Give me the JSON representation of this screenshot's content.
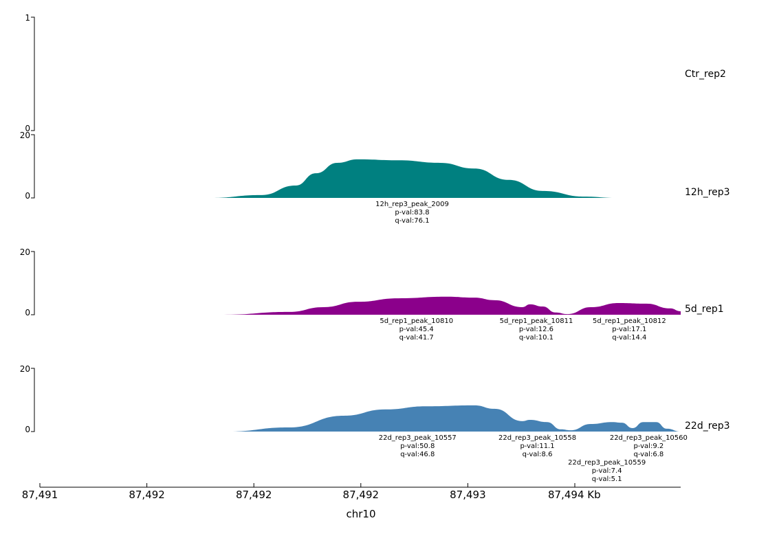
{
  "chart_data": {
    "type": "area",
    "xlabel": "chr10",
    "x_ticks": [
      {
        "value": 0,
        "label": "87,491"
      },
      {
        "value": 1,
        "label": "87,492"
      },
      {
        "value": 2,
        "label": "87,492"
      },
      {
        "value": 3,
        "label": "87,492"
      },
      {
        "value": 4,
        "label": "87,493"
      },
      {
        "value": 5,
        "label": "87,494 Kb"
      }
    ],
    "xlim": [
      -0.05,
      5.99
    ],
    "tracks": [
      {
        "name": "Ctr_rep2",
        "color": "#008080",
        "ylim": [
          0,
          1
        ],
        "ytick_labels": [
          "1",
          "0"
        ],
        "points": [],
        "peaks": []
      },
      {
        "name": "12h_rep3",
        "color": "#008080",
        "ylim": [
          0,
          20
        ],
        "ytick_labels": [
          "20",
          "0"
        ],
        "points": [
          [
            1.59,
            0
          ],
          [
            2.07,
            0.9
          ],
          [
            2.39,
            3.9
          ],
          [
            2.58,
            7.8
          ],
          [
            2.78,
            11.1
          ],
          [
            2.97,
            12.2
          ],
          [
            3.35,
            11.9
          ],
          [
            3.74,
            11.1
          ],
          [
            4.06,
            9.3
          ],
          [
            4.38,
            5.7
          ],
          [
            4.7,
            2.2
          ],
          [
            5.09,
            0.4
          ],
          [
            5.38,
            0
          ]
        ],
        "peaks": [
          {
            "name": "12h_rep3_peak_2009",
            "pval": "p-val:83.8",
            "qval": "q-val:76.1",
            "x": 3.48
          }
        ]
      },
      {
        "name": "5d_rep1",
        "color": "#8B008B",
        "ylim": [
          0,
          20
        ],
        "ytick_labels": [
          "20",
          "0"
        ],
        "points": [
          [
            1.72,
            0
          ],
          [
            2.33,
            0.9
          ],
          [
            2.65,
            2.4
          ],
          [
            2.97,
            4.1
          ],
          [
            3.35,
            5.2
          ],
          [
            3.8,
            5.7
          ],
          [
            4.06,
            5.4
          ],
          [
            4.25,
            4.6
          ],
          [
            4.51,
            2.4
          ],
          [
            4.58,
            3.3
          ],
          [
            4.7,
            2.6
          ],
          [
            4.82,
            0.7
          ],
          [
            4.93,
            0.2
          ],
          [
            5.15,
            2.4
          ],
          [
            5.41,
            3.7
          ],
          [
            5.67,
            3.5
          ],
          [
            5.89,
            2.0
          ],
          [
            5.99,
            1.1
          ]
        ],
        "peaks": [
          {
            "name": "5d_rep1_peak_10810",
            "pval": "p-val:45.4",
            "qval": "q-val:41.7",
            "x": 3.52
          },
          {
            "name": "5d_rep1_peak_10811",
            "pval": "p-val:12.6",
            "qval": "q-val:10.1",
            "x": 4.64
          },
          {
            "name": "5d_rep1_peak_10812",
            "pval": "p-val:17.1",
            "qval": "q-val:14.4",
            "x": 5.51
          }
        ]
      },
      {
        "name": "22d_rep3",
        "color": "#4682B4",
        "ylim": [
          0,
          20
        ],
        "ytick_labels": [
          "20",
          "0"
        ],
        "points": [
          [
            1.74,
            0
          ],
          [
            2.33,
            1.3
          ],
          [
            2.84,
            5.0
          ],
          [
            3.23,
            7.0
          ],
          [
            3.61,
            8.0
          ],
          [
            4.06,
            8.3
          ],
          [
            4.25,
            7.2
          ],
          [
            4.51,
            3.3
          ],
          [
            4.58,
            3.7
          ],
          [
            4.74,
            3.0
          ],
          [
            4.87,
            0.7
          ],
          [
            4.96,
            0.4
          ],
          [
            5.15,
            2.4
          ],
          [
            5.35,
            3.0
          ],
          [
            5.44,
            2.8
          ],
          [
            5.54,
            1.1
          ],
          [
            5.64,
            3.0
          ],
          [
            5.76,
            3.0
          ],
          [
            5.86,
            0.9
          ],
          [
            5.99,
            0
          ]
        ],
        "peaks": [
          {
            "name": "22d_rep3_peak_10557",
            "pval": "p-val:50.8",
            "qval": "q-val:46.8",
            "x": 3.53
          },
          {
            "name": "22d_rep3_peak_10558",
            "pval": "p-val:11.1",
            "qval": "q-val:8.6",
            "x": 4.65
          },
          {
            "name": "22d_rep3_peak_10559",
            "pval": "p-val:7.4",
            "qval": "q-val:5.1",
            "x": 5.3
          },
          {
            "name": "22d_rep3_peak_10560",
            "pval": "p-val:9.2",
            "qval": "q-val:6.8",
            "x": 5.69
          }
        ]
      }
    ]
  }
}
